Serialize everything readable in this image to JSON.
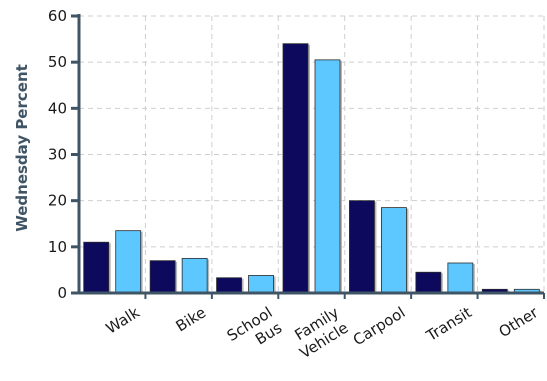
{
  "chart_data": {
    "type": "bar",
    "title": "",
    "xlabel": "",
    "ylabel": "Wednesday Percent",
    "ylim": [
      0,
      60
    ],
    "yticks": [
      0,
      10,
      20,
      30,
      40,
      50,
      60
    ],
    "grid": true,
    "legend": "none",
    "categories": [
      [
        "Walk"
      ],
      [
        "Bike"
      ],
      [
        "School",
        "Bus"
      ],
      [
        "Family",
        "Vehicle"
      ],
      [
        "Carpool"
      ],
      [
        "Transit"
      ],
      [
        "Other"
      ]
    ],
    "series": [
      {
        "values": [
          11,
          7,
          3.3,
          54,
          20,
          4.5,
          0.8
        ],
        "color": "#0d0a5e"
      },
      {
        "values": [
          13.5,
          7.5,
          3.8,
          50.5,
          18.5,
          6.5,
          0.8
        ],
        "color": "#5cc8ff"
      }
    ]
  },
  "colors": {
    "axis": "#3f5566",
    "grid": "#cfcfcf",
    "bar_border": "#2b2b2b"
  }
}
